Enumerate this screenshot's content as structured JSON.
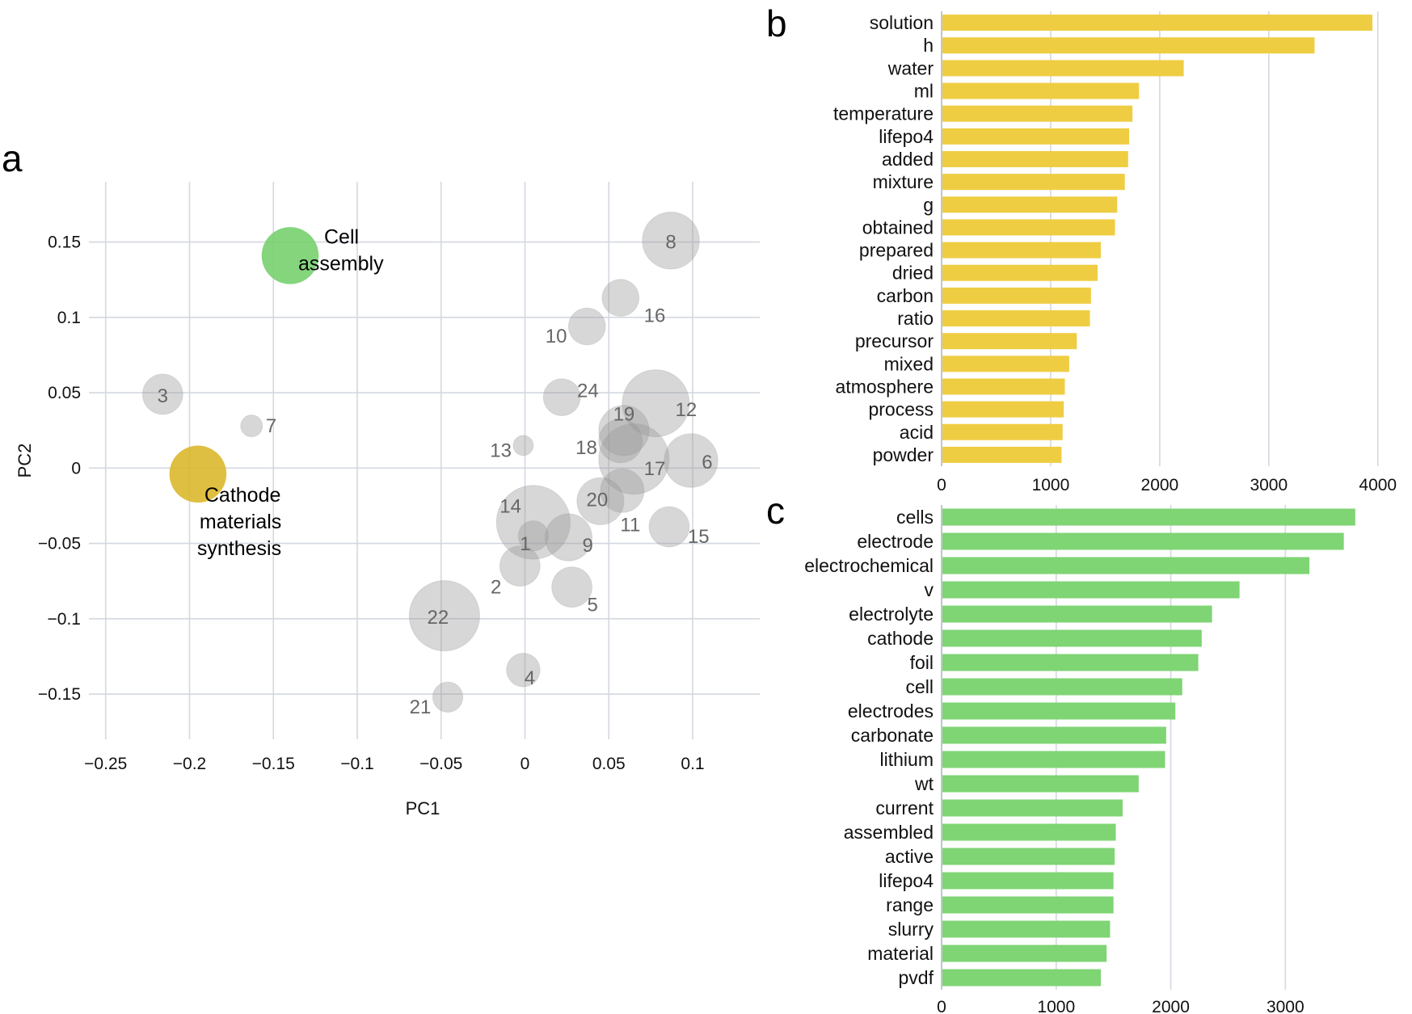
{
  "panels": {
    "a": "a",
    "b": "b",
    "c": "c"
  },
  "chart_data": [
    {
      "id": "a",
      "type": "scatter",
      "xlabel": "PC1",
      "ylabel": "PC2",
      "xlim": [
        -0.26,
        0.14
      ],
      "ylim": [
        -0.18,
        0.19
      ],
      "xticks": [
        -0.25,
        -0.2,
        -0.15,
        -0.1,
        -0.05,
        0,
        0.05,
        0.1
      ],
      "xtick_labels": [
        "−0.25",
        "−0.2",
        "−0.15",
        "−0.1",
        "−0.05",
        "0",
        "0.05",
        "0.1"
      ],
      "yticks": [
        0.15,
        0.1,
        0.05,
        0,
        -0.05,
        -0.1,
        -0.15
      ],
      "ytick_labels": [
        "0.15",
        "0.1",
        "0.05",
        "0",
        "−0.05",
        "−0.1",
        "−0.15"
      ],
      "grid": true,
      "points": [
        {
          "label": "1",
          "x": 0.005,
          "y": -0.045,
          "r": 0.009
        },
        {
          "label": "2",
          "x": -0.003,
          "y": -0.065,
          "r": 0.012
        },
        {
          "label": "3",
          "x": -0.216,
          "y": 0.049,
          "r": 0.012
        },
        {
          "label": "4",
          "x": -0.001,
          "y": -0.134,
          "r": 0.01
        },
        {
          "label": "5",
          "x": 0.028,
          "y": -0.079,
          "r": 0.012
        },
        {
          "label": "6",
          "x": 0.099,
          "y": 0.005,
          "r": 0.016
        },
        {
          "label": "7",
          "x": -0.163,
          "y": 0.028,
          "r": 0.0065
        },
        {
          "label": "8",
          "x": 0.087,
          "y": 0.151,
          "r": 0.017
        },
        {
          "label": "9",
          "x": 0.026,
          "y": -0.046,
          "r": 0.014
        },
        {
          "label": "10",
          "x": 0.037,
          "y": 0.094,
          "r": 0.011
        },
        {
          "label": "11",
          "x": 0.058,
          "y": -0.015,
          "r": 0.013
        },
        {
          "label": "12",
          "x": 0.078,
          "y": 0.043,
          "r": 0.02
        },
        {
          "label": "13",
          "x": -0.001,
          "y": 0.015,
          "r": 0.006
        },
        {
          "label": "14",
          "x": 0.005,
          "y": -0.036,
          "r": 0.022
        },
        {
          "label": "15",
          "x": 0.086,
          "y": -0.039,
          "r": 0.012
        },
        {
          "label": "16",
          "x": 0.057,
          "y": 0.113,
          "r": 0.011
        },
        {
          "label": "17",
          "x": 0.065,
          "y": 0.006,
          "r": 0.021
        },
        {
          "label": "18",
          "x": 0.057,
          "y": 0.018,
          "r": 0.013
        },
        {
          "label": "19",
          "x": 0.059,
          "y": 0.025,
          "r": 0.015
        },
        {
          "label": "20",
          "x": 0.045,
          "y": -0.022,
          "r": 0.014
        },
        {
          "label": "21",
          "x": -0.046,
          "y": -0.152,
          "r": 0.009
        },
        {
          "label": "22",
          "x": -0.048,
          "y": -0.098,
          "r": 0.021
        },
        {
          "label": "24",
          "x": 0.022,
          "y": 0.047,
          "r": 0.011
        }
      ],
      "highlights": [
        {
          "label": "Cell assembly",
          "lines": [
            "Cell",
            "assembly"
          ],
          "x": -0.14,
          "y": 0.141,
          "r": 0.017,
          "color": "#77d06e"
        },
        {
          "label": "Cathode materials synthesis",
          "lines": [
            "Cathode",
            "materials",
            "synthesis"
          ],
          "x": -0.195,
          "y": -0.004,
          "r": 0.017,
          "color": "#dbb82e"
        }
      ]
    },
    {
      "id": "b",
      "type": "bar",
      "orientation": "horizontal",
      "color": "#efcd43",
      "categories": [
        "solution",
        "h",
        "water",
        "ml",
        "temperature",
        "lifepo4",
        "added",
        "mixture",
        "g",
        "obtained",
        "prepared",
        "dried",
        "carbon",
        "ratio",
        "precursor",
        "mixed",
        "atmosphere",
        "process",
        "acid",
        "powder"
      ],
      "values": [
        3950,
        3420,
        2220,
        1810,
        1750,
        1720,
        1710,
        1680,
        1610,
        1590,
        1460,
        1430,
        1370,
        1360,
        1240,
        1170,
        1130,
        1120,
        1110,
        1100
      ],
      "xlim": [
        0,
        4150
      ],
      "xticks": [
        0,
        1000,
        2000,
        3000,
        4000
      ],
      "xtick_labels": [
        "0",
        "1000",
        "2000",
        "3000",
        "4000"
      ],
      "grid": true
    },
    {
      "id": "c",
      "type": "bar",
      "orientation": "horizontal",
      "color": "#7fd474",
      "categories": [
        "cells",
        "electrode",
        "electrochemical",
        "v",
        "electrolyte",
        "cathode",
        "foil",
        "cell",
        "electrodes",
        "carbonate",
        "lithium",
        "wt",
        "current",
        "assembled",
        "active",
        "lifepo4",
        "range",
        "slurry",
        "material",
        "pvdf"
      ],
      "values": [
        3610,
        3510,
        3210,
        2600,
        2360,
        2270,
        2240,
        2100,
        2040,
        1960,
        1950,
        1720,
        1580,
        1520,
        1510,
        1500,
        1500,
        1470,
        1440,
        1390
      ],
      "xlim": [
        0,
        3950
      ],
      "xticks": [
        0,
        1000,
        2000,
        3000
      ],
      "xtick_labels": [
        "0",
        "1000",
        "2000",
        "3000"
      ],
      "grid": true
    }
  ]
}
